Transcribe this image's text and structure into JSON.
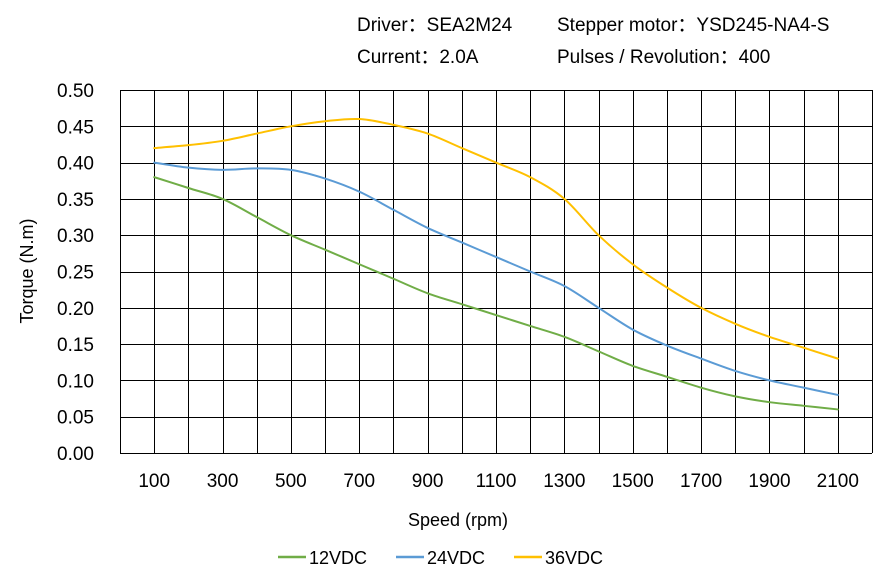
{
  "header": {
    "driver": "Driver：SEA2M24",
    "motor": "Stepper motor：YSD245-NA4-S",
    "current": "Current：2.0A",
    "pulses": "Pulses / Revolution：400"
  },
  "chart_data": {
    "type": "line",
    "xlabel": "Speed  (rpm)",
    "ylabel": "Torque (N.m)",
    "x_ticks": [
      "100",
      "300",
      "500",
      "700",
      "900",
      "1100",
      "1300",
      "1500",
      "1700",
      "1900",
      "2100"
    ],
    "y_ticks": [
      "0.00",
      "0.05",
      "0.10",
      "0.15",
      "0.20",
      "0.25",
      "0.30",
      "0.35",
      "0.40",
      "0.45",
      "0.50"
    ],
    "xlim": [
      0,
      2200
    ],
    "ylim": [
      0,
      0.5
    ],
    "grid": true,
    "legend_position": "bottom",
    "x": [
      100,
      200,
      300,
      400,
      500,
      600,
      700,
      800,
      900,
      1000,
      1100,
      1200,
      1300,
      1400,
      1500,
      1600,
      1700,
      1800,
      1900,
      2000,
      2100
    ],
    "series": [
      {
        "name": "12VDC",
        "color": "#70ad47",
        "values": [
          0.38,
          0.365,
          0.35,
          0.325,
          0.3,
          0.28,
          0.26,
          0.24,
          0.22,
          0.205,
          0.19,
          0.175,
          0.16,
          0.14,
          0.12,
          0.105,
          0.09,
          0.078,
          0.07,
          0.065,
          0.06
        ]
      },
      {
        "name": "24VDC",
        "color": "#5b9bd5",
        "values": [
          0.4,
          0.393,
          0.39,
          0.392,
          0.39,
          0.378,
          0.36,
          0.335,
          0.31,
          0.29,
          0.27,
          0.25,
          0.23,
          0.2,
          0.17,
          0.148,
          0.13,
          0.113,
          0.1,
          0.09,
          0.08
        ]
      },
      {
        "name": "36VDC",
        "color": "#ffc000",
        "values": [
          0.42,
          0.424,
          0.43,
          0.44,
          0.45,
          0.457,
          0.46,
          0.452,
          0.44,
          0.42,
          0.4,
          0.38,
          0.35,
          0.3,
          0.26,
          0.228,
          0.2,
          0.178,
          0.16,
          0.145,
          0.13
        ]
      }
    ]
  }
}
